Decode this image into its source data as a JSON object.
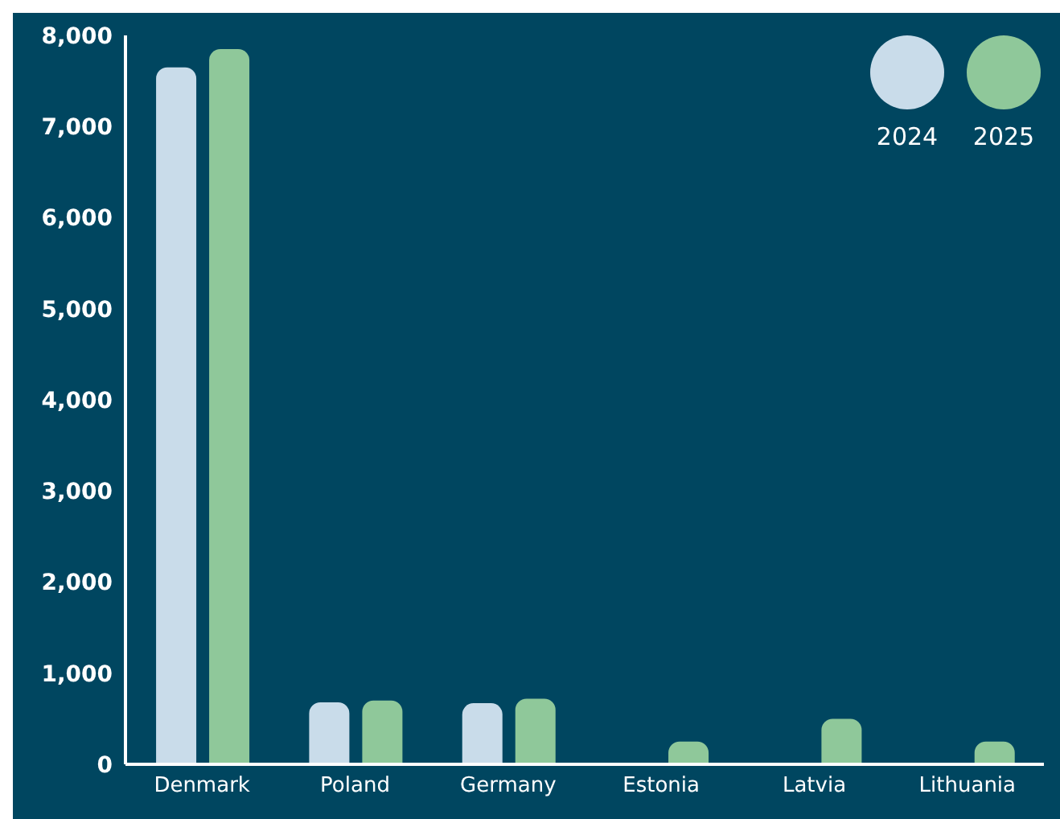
{
  "chart_data": {
    "type": "bar",
    "categories": [
      "Denmark",
      "Poland",
      "Germany",
      "Estonia",
      "Latvia",
      "Lithuania"
    ],
    "series": [
      {
        "name": "2024",
        "color": "#c9dcea",
        "values": [
          7650,
          680,
          670,
          null,
          null,
          null
        ]
      },
      {
        "name": "2025",
        "color": "#8fc89a",
        "values": [
          7850,
          700,
          720,
          250,
          500,
          250
        ]
      }
    ],
    "ylim": [
      0,
      8000
    ],
    "yticks": [
      0,
      {
        "value": 1000,
        "label": "1,000"
      },
      {
        "value": 2000,
        "label": "2,000"
      },
      {
        "value": 3000,
        "label": "3,000"
      },
      {
        "value": 4000,
        "label": "4,000"
      },
      {
        "value": 5000,
        "label": "5,000"
      },
      {
        "value": 6000,
        "label": "6,000"
      },
      {
        "value": 7000,
        "label": "7,000"
      },
      {
        "value": 8000,
        "label": "8,000"
      }
    ],
    "grid": false,
    "legend": "top right"
  }
}
